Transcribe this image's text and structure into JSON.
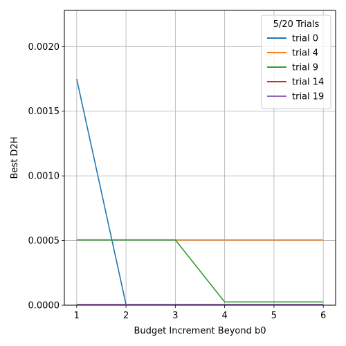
{
  "chart_data": {
    "type": "line",
    "xlabel": "Budget Increment Beyond b0",
    "ylabel": "Best D2H",
    "x": [
      1,
      2,
      3,
      4,
      5,
      6
    ],
    "xlim": [
      0.75,
      6.25
    ],
    "ylim": [
      0,
      0.00228
    ],
    "x_ticks": [
      1,
      2,
      3,
      4,
      5,
      6
    ],
    "y_ticks": [
      0.0,
      0.0005,
      0.001,
      0.0015,
      0.002
    ],
    "y_tick_labels": [
      "0.0000",
      "0.0005",
      "0.0010",
      "0.0015",
      "0.0020"
    ],
    "grid": true,
    "legend": {
      "title": "5/20 Trials",
      "placement": "top-right"
    },
    "series": [
      {
        "name": "trial 0",
        "color": "#1f77b4",
        "values": [
          0.00175,
          5e-06,
          5e-06,
          5e-06,
          5e-06,
          5e-06
        ]
      },
      {
        "name": "trial 4",
        "color": "#ff7f0e",
        "values": [
          0.000505,
          0.000505,
          0.000505,
          0.000505,
          0.000505,
          0.000505
        ]
      },
      {
        "name": "trial 9",
        "color": "#2ca02c",
        "values": [
          0.000505,
          0.000505,
          0.000505,
          2.5e-05,
          2.5e-05,
          2.5e-05
        ]
      },
      {
        "name": "trial 14",
        "color": "#d62728",
        "values": [
          5e-06,
          5e-06,
          5e-06,
          5e-06,
          5e-06,
          5e-06
        ]
      },
      {
        "name": "trial 19",
        "color": "#9467bd",
        "values": [
          5e-06,
          5e-06,
          5e-06,
          5e-06,
          5e-06,
          5e-06
        ]
      }
    ]
  }
}
